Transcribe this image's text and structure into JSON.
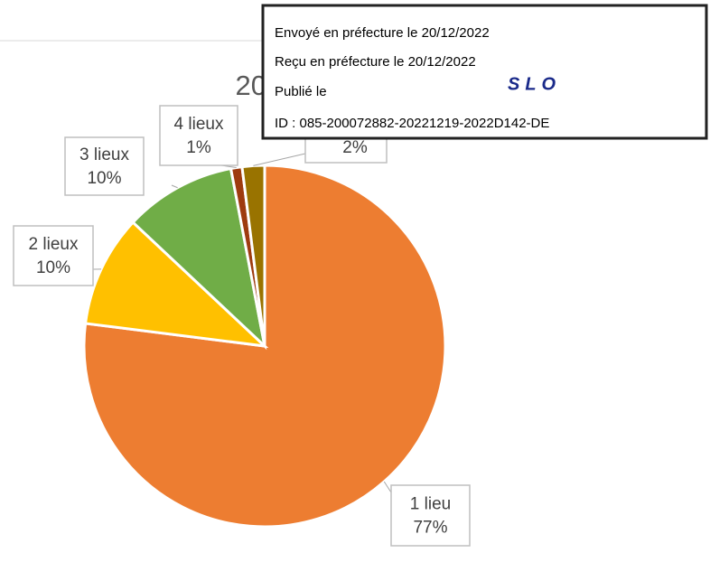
{
  "chart_data": {
    "type": "pie",
    "title": "2019",
    "categories": [
      "1 lieu",
      "2 lieux",
      "3 lieux",
      "4 lieux",
      null
    ],
    "values": [
      77,
      10,
      10,
      1,
      2
    ],
    "value_labels": [
      "77%",
      "10%",
      "10%",
      "1%",
      "2%"
    ],
    "colors": [
      "#ED7D31",
      "#FFC000",
      "#70AD47",
      "#9E3B0F",
      "#997300"
    ]
  },
  "stamp": {
    "lines": [
      "Envoyé en préfecture le 20/12/2022",
      "Reçu en préfecture le 20/12/2022",
      "Publié le",
      "ID : 085-200072882-20221219-2022D142-DE"
    ],
    "logo": "SLO"
  }
}
